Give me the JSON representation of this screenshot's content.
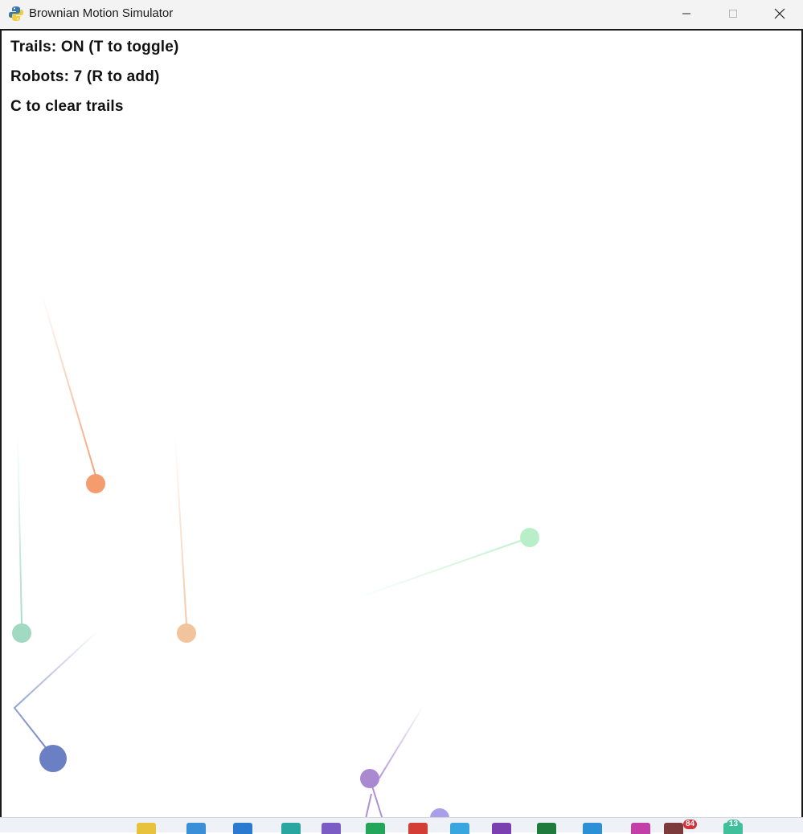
{
  "window": {
    "title": "Brownian Motion Simulator",
    "icon": "python-snake-icon",
    "buttons": [
      "minimize",
      "maximize",
      "close"
    ]
  },
  "hud": {
    "trails": "Trails: ON (T to toggle)",
    "robots": "Robots: 7 (R to add)",
    "clear": "C to clear trails"
  },
  "robots": [
    {
      "color": "#f49c6e"
    },
    {
      "color": "#f2c49e"
    },
    {
      "color": "#a2d9c3"
    },
    {
      "color": "#b8efc9"
    },
    {
      "color": "#6b7fc4"
    },
    {
      "color": "#a98ad1"
    },
    {
      "color": "#a99fe8"
    }
  ],
  "taskbar": {
    "icons": [
      {
        "name": "taskbar-app-yellow",
        "color": "#e8c23a"
      },
      {
        "name": "taskbar-app-blue-1",
        "color": "#3a8fd8"
      },
      {
        "name": "taskbar-app-blue-2",
        "color": "#2a7bd0"
      },
      {
        "name": "taskbar-app-teal",
        "color": "#2aa6a0"
      },
      {
        "name": "taskbar-app-purple",
        "color": "#7b5cc4"
      },
      {
        "name": "taskbar-app-green",
        "color": "#23a55a"
      },
      {
        "name": "taskbar-app-red",
        "color": "#d43c36"
      },
      {
        "name": "taskbar-app-skyblue",
        "color": "#3aa6e0"
      },
      {
        "name": "taskbar-app-purple-red",
        "color": "#7a3fb0"
      },
      {
        "name": "taskbar-app-excel",
        "color": "#1f7a3e"
      },
      {
        "name": "taskbar-app-edge",
        "color": "#2d8fd6"
      },
      {
        "name": "taskbar-app-magenta",
        "color": "#c23fa8"
      },
      {
        "name": "taskbar-app-maroon",
        "color": "#7c3a3a"
      },
      {
        "name": "taskbar-app-mint",
        "color": "#3fbf9a"
      }
    ],
    "badges": [
      "84",
      "13"
    ]
  }
}
